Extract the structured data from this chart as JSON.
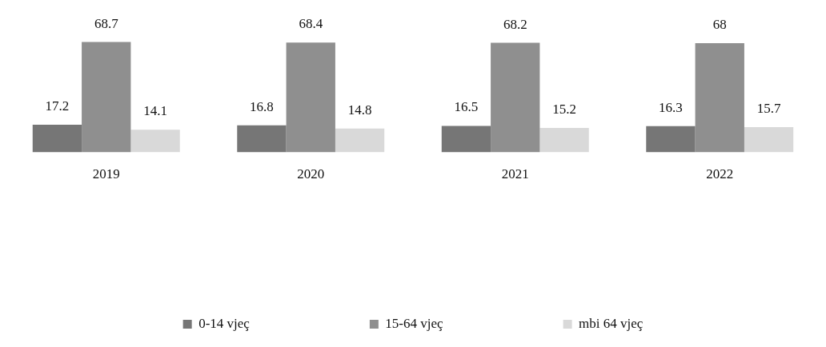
{
  "chart_data": {
    "type": "bar",
    "categories": [
      "2019",
      "2020",
      "2021",
      "2022"
    ],
    "series": [
      {
        "name": "0-14 vjeç",
        "color": "#767676",
        "values": [
          17.2,
          16.8,
          16.5,
          16.3
        ]
      },
      {
        "name": "15-64 vjeç",
        "color": "#8f8f8f",
        "values": [
          68.7,
          68.4,
          68.2,
          68
        ]
      },
      {
        "name": "mbi 64 vjeç",
        "color": "#d9d9d9",
        "values": [
          14.1,
          14.8,
          15.2,
          15.7
        ]
      }
    ],
    "data_labels": true,
    "legend": "bottom",
    "grid": false
  }
}
